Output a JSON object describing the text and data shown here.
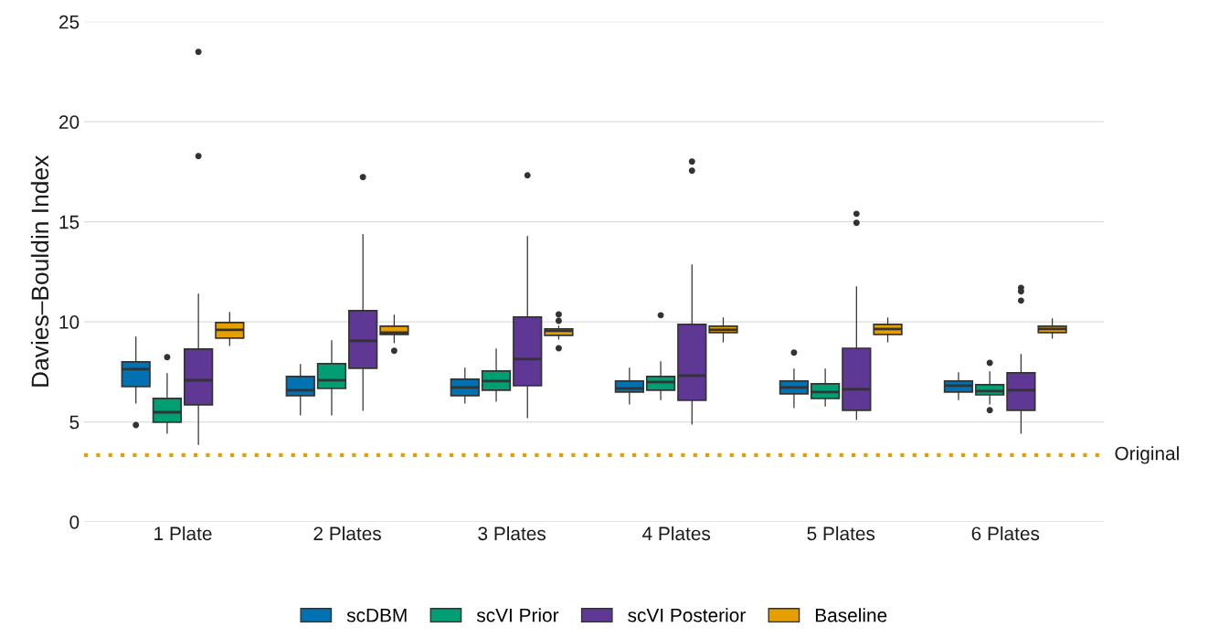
{
  "chart_data": {
    "type": "box",
    "ylabel": "Davies–Bouldin Index",
    "categories": [
      "1 Plate",
      "2 Plates",
      "3 Plates",
      "4 Plates",
      "5 Plates",
      "6 Plates"
    ],
    "ylim": [
      0,
      25
    ],
    "yticks": [
      0,
      5,
      10,
      15,
      20,
      25
    ],
    "grid": "y",
    "legend": "bottom",
    "series": [
      {
        "name": "scDBM",
        "color": "#0072b2",
        "boxes": [
          {
            "low": 5.94,
            "q1": 6.76,
            "median": 7.63,
            "q3": 8.0,
            "high": 9.23,
            "outliers": [
              4.84
            ]
          },
          {
            "low": 5.35,
            "q1": 6.31,
            "median": 6.58,
            "q3": 7.27,
            "high": 7.86
          },
          {
            "low": 5.94,
            "q1": 6.31,
            "median": 6.72,
            "q3": 7.13,
            "high": 7.68
          },
          {
            "low": 5.9,
            "q1": 6.49,
            "median": 6.67,
            "q3": 7.04,
            "high": 7.68
          },
          {
            "low": 5.71,
            "q1": 6.4,
            "median": 6.72,
            "q3": 7.04,
            "high": 7.63,
            "outliers": [
              8.46
            ]
          },
          {
            "low": 6.12,
            "q1": 6.49,
            "median": 6.81,
            "q3": 7.04,
            "high": 7.45
          }
        ]
      },
      {
        "name": "scVI Prior",
        "color": "#009e73",
        "boxes": [
          {
            "low": 4.43,
            "q1": 4.98,
            "median": 5.48,
            "q3": 6.17,
            "high": 7.4,
            "outliers": [
              8.23
            ]
          },
          {
            "low": 5.35,
            "q1": 6.67,
            "median": 7.08,
            "q3": 7.91,
            "high": 9.05
          },
          {
            "low": 6.03,
            "q1": 6.58,
            "median": 7.04,
            "q3": 7.54,
            "high": 8.64
          },
          {
            "low": 6.12,
            "q1": 6.58,
            "median": 6.99,
            "q3": 7.27,
            "high": 8.0,
            "outliers": [
              10.33
            ]
          },
          {
            "low": 5.8,
            "q1": 6.17,
            "median": 6.49,
            "q3": 6.9,
            "high": 7.63
          },
          {
            "low": 5.9,
            "q1": 6.35,
            "median": 6.54,
            "q3": 6.86,
            "high": 7.5,
            "outliers": [
              7.95,
              5.58
            ]
          }
        ]
      },
      {
        "name": "scVI Posterior",
        "color": "#5e3894",
        "boxes": [
          {
            "low": 3.88,
            "q1": 5.85,
            "median": 7.08,
            "q3": 8.64,
            "high": 11.38,
            "outliers": [
              23.49,
              18.28
            ]
          },
          {
            "low": 5.58,
            "q1": 7.68,
            "median": 9.05,
            "q3": 10.56,
            "high": 14.35,
            "outliers": [
              17.23
            ]
          },
          {
            "low": 5.21,
            "q1": 6.81,
            "median": 8.14,
            "q3": 10.24,
            "high": 14.26,
            "outliers": [
              17.32
            ]
          },
          {
            "low": 4.89,
            "q1": 6.08,
            "median": 7.31,
            "q3": 9.87,
            "high": 12.84,
            "outliers": [
              18.01,
              17.55
            ]
          },
          {
            "low": 5.12,
            "q1": 5.58,
            "median": 6.63,
            "q3": 8.68,
            "high": 11.75,
            "outliers": [
              15.4,
              14.95
            ]
          },
          {
            "low": 4.43,
            "q1": 5.58,
            "median": 6.58,
            "q3": 7.45,
            "high": 8.36,
            "outliers": [
              11.7,
              11.52,
              11.06
            ]
          }
        ]
      },
      {
        "name": "Baseline",
        "color": "#e69f00",
        "boxes": [
          {
            "low": 8.82,
            "q1": 9.19,
            "median": 9.6,
            "q3": 9.96,
            "high": 10.47
          },
          {
            "low": 8.96,
            "q1": 9.37,
            "median": 9.46,
            "q3": 9.78,
            "high": 10.33,
            "outliers": [
              8.55
            ]
          },
          {
            "low": 9.14,
            "q1": 9.32,
            "median": 9.55,
            "q3": 9.64,
            "high": 9.78,
            "outliers": [
              10.37,
              10.05,
              8.68
            ]
          },
          {
            "low": 9.0,
            "q1": 9.46,
            "median": 9.6,
            "q3": 9.78,
            "high": 10.19
          },
          {
            "low": 9.0,
            "q1": 9.37,
            "median": 9.64,
            "q3": 9.87,
            "high": 10.19
          },
          {
            "low": 9.19,
            "q1": 9.46,
            "median": 9.64,
            "q3": 9.78,
            "high": 10.15
          }
        ]
      }
    ],
    "ref_lines": [
      {
        "axis": "y",
        "value": 3.34,
        "label": "Original",
        "color": "#e69f00",
        "line_style": "dotted"
      }
    ]
  }
}
